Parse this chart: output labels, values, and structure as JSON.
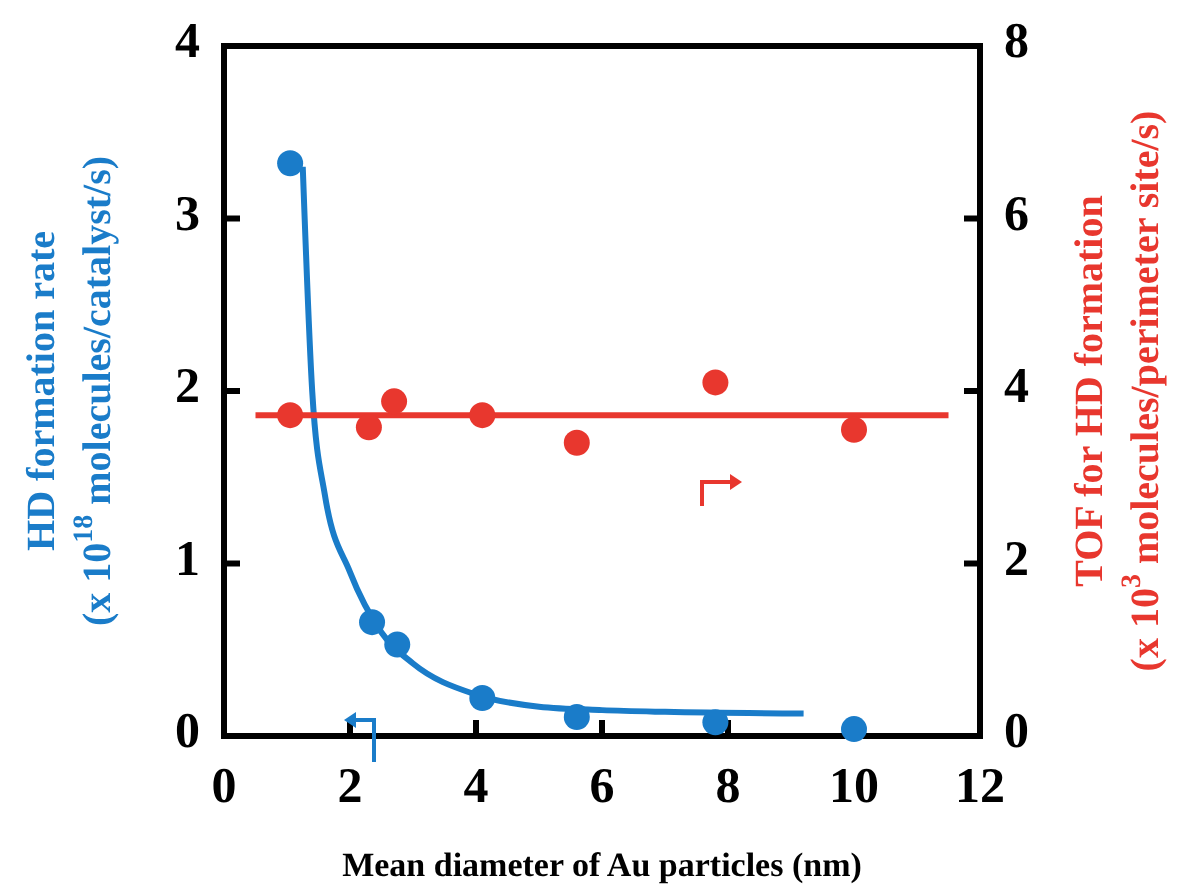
{
  "chart_data": {
    "type": "scatter",
    "xlabel": "Mean diameter  of Au particles (nm)",
    "ylabel": "HD formation rate\n(x 10$^{18}$ molecules/catalyst/s)",
    "y2label": "TOF  for HD formation\n(x 10$^{3}$ molecules/perimeter site/s)",
    "xlim": [
      0,
      12
    ],
    "xticks": [
      0,
      2,
      4,
      6,
      8,
      10,
      12
    ],
    "ylim": [
      0,
      4
    ],
    "yticks": [
      0,
      1,
      2,
      3,
      4
    ],
    "y2lim": [
      0,
      8
    ],
    "y2ticks": [
      0,
      2,
      4,
      6,
      8
    ],
    "marker": "circle",
    "series": [
      {
        "type": "line",
        "color": "#1a7cc9",
        "marker": "none",
        "x": [
          1.25,
          1.4,
          1.6,
          2.0,
          2.5,
          3.0,
          4.0,
          5.0,
          6.0,
          7.0,
          9.2
        ],
        "values": [
          3.3,
          2.0,
          1.4,
          0.95,
          0.6,
          0.42,
          0.24,
          0.17,
          0.15,
          0.14,
          0.13
        ]
      },
      {
        "type": "line",
        "axis": "y2",
        "color": "#e8372e",
        "marker": "none",
        "x": [
          0.5,
          11.5
        ],
        "values": [
          3.72,
          3.72
        ]
      },
      {
        "color": "#1a7cc9",
        "x": [
          1.05,
          2.35,
          2.75,
          4.1,
          5.6,
          7.8,
          10
        ],
        "values": [
          3.32,
          0.66,
          0.53,
          0.22,
          0.11,
          0.08,
          0.04
        ]
      },
      {
        "axis": "y2",
        "color": "#e8372e",
        "x": [
          1.05,
          2.3,
          2.7,
          4.1,
          5.6,
          7.8,
          10
        ],
        "values": [
          3.72,
          3.58,
          3.88,
          3.72,
          3.4,
          4.1,
          3.55
        ]
      }
    ]
  }
}
